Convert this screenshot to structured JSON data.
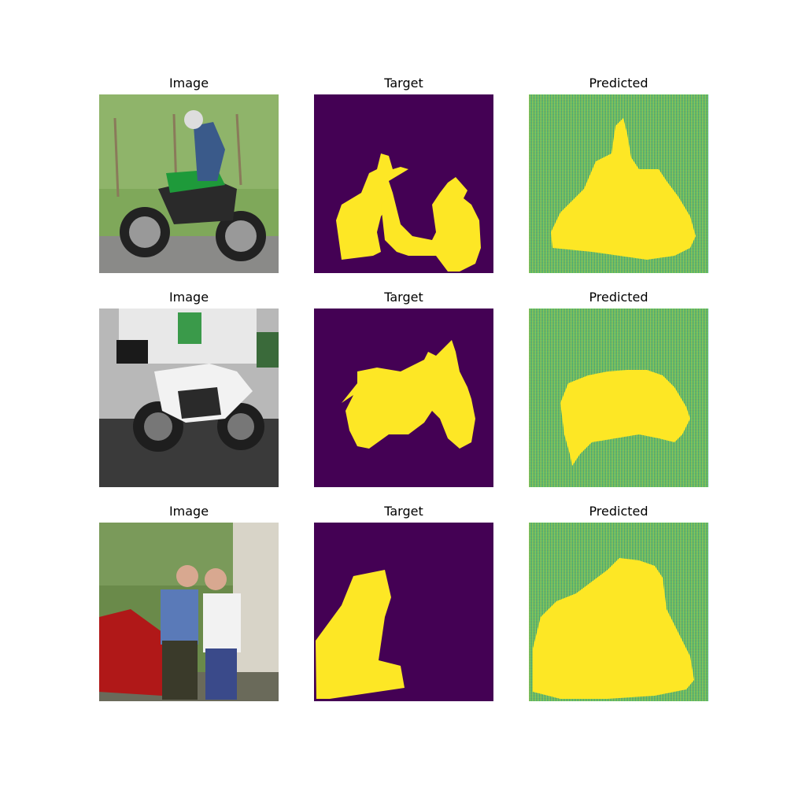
{
  "rows": [
    {
      "image_title": "Image",
      "target_title": "Target",
      "predicted_title": "Predicted"
    },
    {
      "image_title": "Image",
      "target_title": "Target",
      "predicted_title": "Predicted"
    },
    {
      "image_title": "Image",
      "target_title": "Target",
      "predicted_title": "Predicted"
    }
  ],
  "colors": {
    "mask_background": "#440154",
    "mask_foreground": "#fde725",
    "predicted_background": "#35b779"
  }
}
